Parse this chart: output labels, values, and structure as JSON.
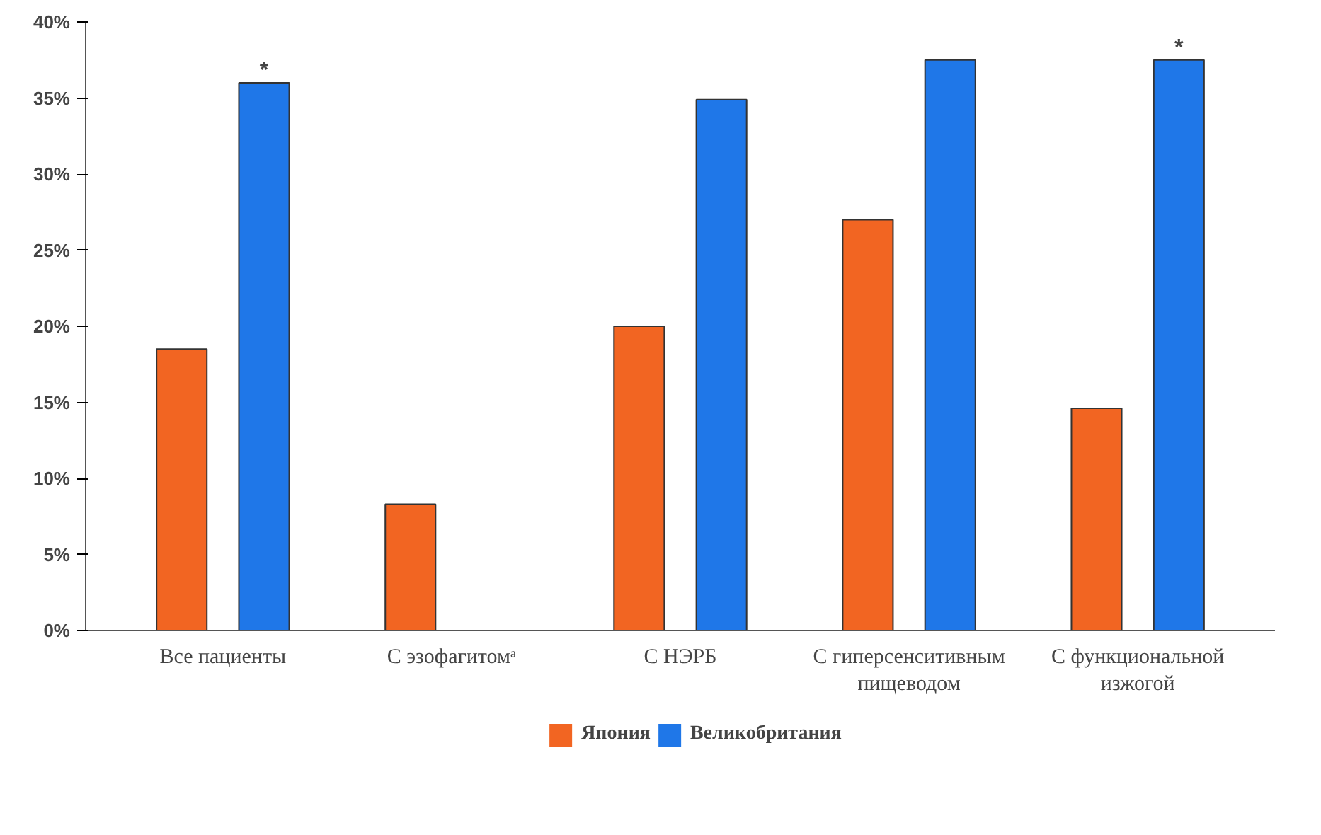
{
  "chart_data": {
    "type": "bar",
    "categories": [
      "Все пациенты",
      "С эзофагитомᵃ",
      "С НЭРБ",
      "С гиперсенситивным\nпищеводом",
      "С функциональной\nизжогой"
    ],
    "series": [
      {
        "name": "Япония",
        "color": "#f26522",
        "values": [
          18.5,
          8.3,
          20.0,
          27.0,
          14.6
        ]
      },
      {
        "name": "Великобритания",
        "color": "#1f77e8",
        "values": [
          36.0,
          null,
          34.9,
          37.5,
          37.5
        ],
        "value_labels": [
          "*",
          null,
          null,
          null,
          "*"
        ]
      }
    ],
    "ylim": [
      0,
      40
    ],
    "yticks": [
      {
        "value": 0,
        "label": "0%"
      },
      {
        "value": 5,
        "label": "5%"
      },
      {
        "value": 10,
        "label": "10%"
      },
      {
        "value": 15,
        "label": "15%"
      },
      {
        "value": 20,
        "label": "20%"
      },
      {
        "value": 25,
        "label": "25%"
      },
      {
        "value": 30,
        "label": "30%"
      },
      {
        "value": 35,
        "label": "35%"
      },
      {
        "value": 40,
        "label": "40%"
      }
    ],
    "grid": false,
    "legend": "bottom"
  }
}
